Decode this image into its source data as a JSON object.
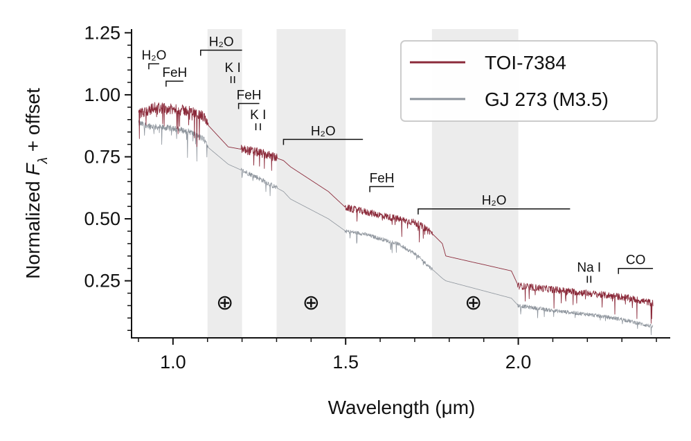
{
  "chart_data": {
    "type": "line",
    "title": "",
    "xlabel": "Wavelength (μm)",
    "ylabel_prefix": "Normalized ",
    "ylabel_symbol": "F",
    "ylabel_subscript": "λ",
    "ylabel_suffix": " + offset",
    "xlim": [
      0.88,
      2.44
    ],
    "ylim": [
      0.02,
      1.265
    ],
    "x_ticks": [
      {
        "value": 1.0,
        "label": "1.0"
      },
      {
        "value": 1.5,
        "label": "1.5"
      },
      {
        "value": 2.0,
        "label": "2.0"
      }
    ],
    "x_minor_step": 0.1,
    "y_ticks": [
      {
        "value": 0.25,
        "label": "0.25"
      },
      {
        "value": 0.5,
        "label": "0.50"
      },
      {
        "value": 0.75,
        "label": "0.75"
      },
      {
        "value": 1.0,
        "label": "1.00"
      },
      {
        "value": 1.25,
        "label": "1.25"
      }
    ],
    "y_minor_step": 0.05,
    "shaded_regions": [
      [
        1.1,
        1.2
      ],
      [
        1.3,
        1.5
      ],
      [
        1.75,
        2.0
      ]
    ],
    "telluric_markers": [
      {
        "x": 1.15,
        "y": 0.165,
        "symbol": "⊕"
      },
      {
        "x": 1.4,
        "y": 0.165,
        "symbol": "⊕"
      },
      {
        "x": 1.87,
        "y": 0.165,
        "symbol": "⊕"
      }
    ],
    "series": [
      {
        "name": "TOI-7384",
        "color": "#8b2a3a",
        "x": [
          0.9,
          0.95,
          1.0,
          1.05,
          1.09,
          1.1,
          1.16,
          1.2,
          1.24,
          1.28,
          1.32,
          1.34,
          1.45,
          1.5,
          1.55,
          1.6,
          1.65,
          1.7,
          1.74,
          1.78,
          1.79,
          1.98,
          2.0,
          2.1,
          2.2,
          2.3,
          2.39
        ],
        "y": [
          0.92,
          0.95,
          0.94,
          0.935,
          0.91,
          0.88,
          0.79,
          0.78,
          0.77,
          0.755,
          0.735,
          0.71,
          0.61,
          0.545,
          0.53,
          0.515,
          0.5,
          0.485,
          0.455,
          0.4,
          0.35,
          0.29,
          0.23,
          0.215,
          0.2,
          0.185,
          0.16
        ]
      },
      {
        "name": "GJ 273 (M3.5)",
        "color": "#8d949c",
        "x": [
          0.9,
          0.95,
          1.0,
          1.05,
          1.09,
          1.1,
          1.16,
          1.2,
          1.24,
          1.28,
          1.32,
          1.34,
          1.45,
          1.5,
          1.55,
          1.6,
          1.65,
          1.7,
          1.74,
          1.78,
          1.79,
          1.98,
          2.0,
          2.1,
          2.2,
          2.3,
          2.39
        ],
        "y": [
          0.885,
          0.87,
          0.865,
          0.85,
          0.82,
          0.79,
          0.72,
          0.695,
          0.67,
          0.64,
          0.61,
          0.58,
          0.5,
          0.45,
          0.44,
          0.42,
          0.4,
          0.36,
          0.31,
          0.26,
          0.25,
          0.18,
          0.15,
          0.13,
          0.115,
          0.095,
          0.065
        ]
      }
    ],
    "feature_labels": [
      {
        "label": "H₂O",
        "x_start": 0.93,
        "x_end": 0.96,
        "y_bar": 1.125
      },
      {
        "label": "FeH",
        "x_start": 0.98,
        "x_end": 1.03,
        "y_bar": 1.055
      },
      {
        "label": "H₂O",
        "x_start": 1.08,
        "x_end": 1.2,
        "y_bar": 1.18
      },
      {
        "label": "K I",
        "x_start": 1.168,
        "x_end": 1.178,
        "y_bar": 1.075
      },
      {
        "label": "FeH",
        "x_start": 1.19,
        "x_end": 1.25,
        "y_bar": 0.965
      },
      {
        "label": "K I",
        "x_start": 1.24,
        "x_end": 1.253,
        "y_bar": 0.885
      },
      {
        "label": "H₂O",
        "x_start": 1.32,
        "x_end": 1.55,
        "y_bar": 0.82
      },
      {
        "label": "FeH",
        "x_start": 1.57,
        "x_end": 1.64,
        "y_bar": 0.63
      },
      {
        "label": "H₂O",
        "x_start": 1.71,
        "x_end": 2.15,
        "y_bar": 0.54
      },
      {
        "label": "Na I",
        "x_start": 2.2,
        "x_end": 2.21,
        "y_bar": 0.27
      },
      {
        "label": "CO",
        "x_start": 2.29,
        "x_end": 2.39,
        "y_bar": 0.3
      }
    ],
    "legend": {
      "position": "top-right",
      "entries": [
        {
          "name": "TOI-7384",
          "color": "#8b2a3a"
        },
        {
          "name": "GJ 273 (M3.5)",
          "color": "#8d949c"
        }
      ]
    },
    "grid": false
  }
}
